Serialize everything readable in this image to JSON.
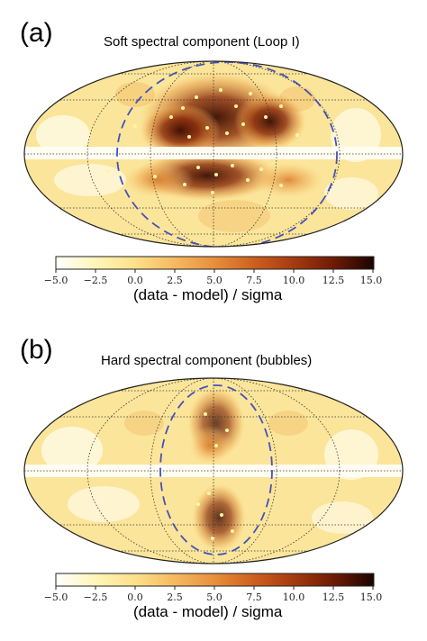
{
  "panels": [
    {
      "letter": "(a)",
      "title": "Soft spectral component (Loop I)",
      "colorbar": {
        "ticks": [
          "−5.0",
          "−2.5",
          "0.0",
          "2.5",
          "5.0",
          "7.5",
          "10.0",
          "12.5",
          "15.0"
        ],
        "label": "(data - model) / sigma"
      }
    },
    {
      "letter": "(b)",
      "title": "Hard spectral component (bubbles)",
      "colorbar": {
        "ticks": [
          "−5.0",
          "−2.5",
          "0.0",
          "2.5",
          "5.0",
          "7.5",
          "10.0",
          "12.5",
          "15.0"
        ],
        "label": "(data - model) / sigma"
      }
    }
  ],
  "colors": {
    "colormap": [
      "#ffffff",
      "#fff5b8",
      "#fde08a",
      "#f6b860",
      "#e88e3c",
      "#cc5f1e",
      "#a43a10",
      "#6e1a05",
      "#1a0500"
    ],
    "dashed_outline": "#4452b8",
    "grid": "#333333",
    "source_dots": "#fff7a0"
  }
}
